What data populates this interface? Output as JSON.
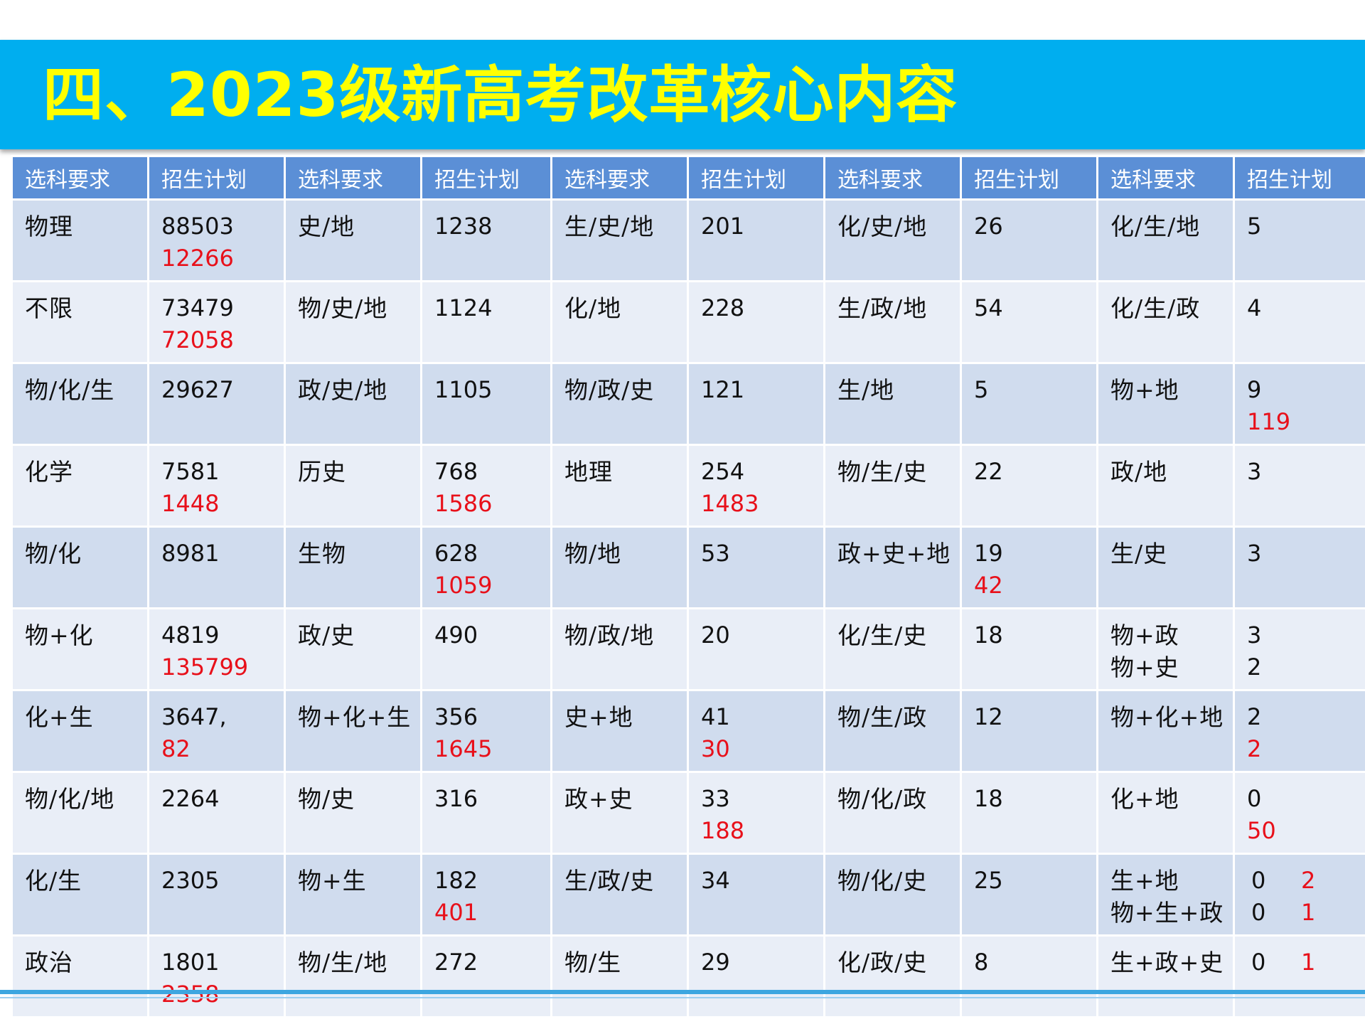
{
  "title": "四、2023级新高考改革核心内容",
  "headers": [
    "选科要求",
    "招生计划",
    "选科要求",
    "招生计划",
    "选科要求",
    "招生计划",
    "选科要求",
    "招生计划",
    "选科要求",
    "招生计划"
  ],
  "rows": [
    [
      [
        "物理"
      ],
      [
        [
          "88503",
          ""
        ],
        [
          "12266",
          "red"
        ]
      ],
      [
        "史/地"
      ],
      [
        [
          "1238",
          ""
        ]
      ],
      [
        "生/史/地"
      ],
      [
        [
          "201",
          ""
        ]
      ],
      [
        "化/史/地"
      ],
      [
        [
          "26",
          ""
        ]
      ],
      [
        "化/生/地"
      ],
      [
        [
          "5",
          ""
        ]
      ]
    ],
    [
      [
        "不限"
      ],
      [
        [
          "73479",
          ""
        ],
        [
          "72058",
          "red"
        ]
      ],
      [
        "物/史/地"
      ],
      [
        [
          "1124",
          ""
        ]
      ],
      [
        "化/地"
      ],
      [
        [
          "228",
          ""
        ]
      ],
      [
        "生/政/地"
      ],
      [
        [
          "54",
          ""
        ]
      ],
      [
        "化/生/政"
      ],
      [
        [
          "4",
          ""
        ]
      ]
    ],
    [
      [
        "物/化/生"
      ],
      [
        [
          "29627",
          ""
        ]
      ],
      [
        "政/史/地"
      ],
      [
        [
          "1105",
          ""
        ]
      ],
      [
        "物/政/史"
      ],
      [
        [
          "121",
          ""
        ]
      ],
      [
        "生/地"
      ],
      [
        [
          "5",
          ""
        ]
      ],
      [
        "物+地"
      ],
      [
        [
          "9",
          ""
        ],
        [
          "119",
          "red"
        ]
      ]
    ],
    [
      [
        "化学"
      ],
      [
        [
          "7581",
          ""
        ],
        [
          "1448",
          "red"
        ]
      ],
      [
        "历史"
      ],
      [
        [
          "768",
          ""
        ],
        [
          "1586",
          "red"
        ]
      ],
      [
        "地理"
      ],
      [
        [
          "254",
          ""
        ],
        [
          "1483",
          "red"
        ]
      ],
      [
        "物/生/史"
      ],
      [
        [
          "22",
          ""
        ]
      ],
      [
        "政/地"
      ],
      [
        [
          "3",
          ""
        ]
      ]
    ],
    [
      [
        "物/化"
      ],
      [
        [
          "8981",
          ""
        ]
      ],
      [
        "生物"
      ],
      [
        [
          "628",
          ""
        ],
        [
          "1059",
          "red"
        ]
      ],
      [
        "物/地"
      ],
      [
        [
          "53",
          ""
        ]
      ],
      [
        "政+史+地"
      ],
      [
        [
          "19",
          ""
        ],
        [
          "42",
          "red"
        ]
      ],
      [
        "生/史"
      ],
      [
        [
          "3",
          ""
        ]
      ]
    ],
    [
      [
        "物+化"
      ],
      [
        [
          "4819",
          ""
        ],
        [
          "135799",
          "red"
        ]
      ],
      [
        "政/史"
      ],
      [
        [
          "490",
          ""
        ]
      ],
      [
        "物/政/地"
      ],
      [
        [
          "20",
          ""
        ]
      ],
      [
        "化/生/史"
      ],
      [
        [
          "18",
          ""
        ]
      ],
      [
        "物+政",
        "物+史"
      ],
      [
        [
          "3",
          ""
        ],
        [
          "2",
          ""
        ]
      ]
    ],
    [
      [
        "化+生"
      ],
      [
        [
          "3647,",
          ""
        ],
        [
          "82",
          "red"
        ]
      ],
      [
        "物+化+生"
      ],
      [
        [
          "356",
          ""
        ],
        [
          "1645",
          "red"
        ]
      ],
      [
        "史+地"
      ],
      [
        [
          "41",
          ""
        ],
        [
          "30",
          "red"
        ]
      ],
      [
        "物/生/政"
      ],
      [
        [
          "12",
          ""
        ]
      ],
      [
        "物+化+地"
      ],
      [
        [
          "2",
          ""
        ],
        [
          "2",
          "red"
        ]
      ]
    ],
    [
      [
        "物/化/地"
      ],
      [
        [
          "2264",
          ""
        ]
      ],
      [
        "物/史"
      ],
      [
        [
          "316",
          ""
        ]
      ],
      [
        "政+史"
      ],
      [
        [
          "33",
          ""
        ],
        [
          "188",
          "red"
        ]
      ],
      [
        "物/化/政"
      ],
      [
        [
          "18",
          ""
        ]
      ],
      [
        "化+地"
      ],
      [
        [
          "0",
          ""
        ],
        [
          "50",
          "red"
        ]
      ]
    ],
    [
      [
        "化/生"
      ],
      [
        [
          "2305",
          ""
        ]
      ],
      [
        "物+生"
      ],
      [
        [
          "182",
          ""
        ],
        [
          "401",
          "red"
        ]
      ],
      [
        "生/政/史"
      ],
      [
        [
          "34",
          ""
        ]
      ],
      [
        "物/化/史"
      ],
      [
        [
          "25",
          ""
        ]
      ],
      [
        "生+地",
        "物+生+政"
      ],
      [
        [
          "0",
          "",
          "2",
          "red"
        ],
        [
          "0",
          "",
          "1",
          "red"
        ]
      ]
    ],
    [
      [
        "政治"
      ],
      [
        [
          "1801",
          ""
        ],
        [
          "2358",
          "red"
        ]
      ],
      [
        "物/生/地"
      ],
      [
        [
          "272",
          ""
        ]
      ],
      [
        "物/生"
      ],
      [
        [
          "29",
          ""
        ]
      ],
      [
        "化/政/史"
      ],
      [
        [
          "8",
          ""
        ]
      ],
      [
        "生+政+史"
      ],
      [
        [
          "0",
          "",
          "1",
          "red"
        ]
      ]
    ]
  ],
  "colors": {
    "title_band": "#00aeef",
    "title_text": "#ffff00",
    "header_bg": "#5b8fd6",
    "row_dark": "#d0dcee",
    "row_light": "#e9eef7",
    "highlight_red": "#e8101a"
  }
}
